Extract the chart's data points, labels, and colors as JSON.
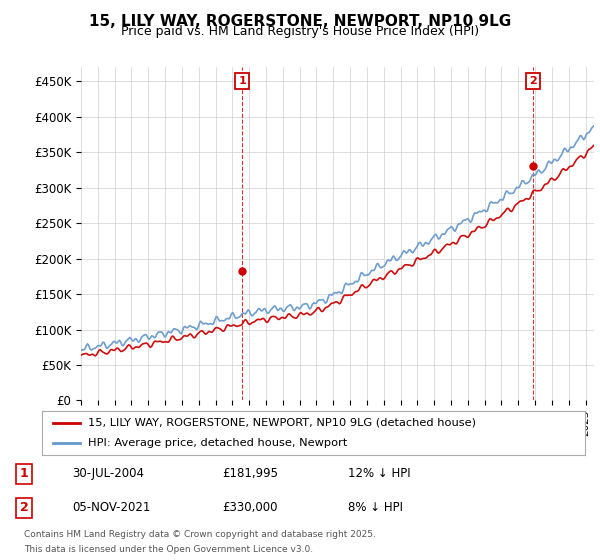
{
  "title": "15, LILY WAY, ROGERSTONE, NEWPORT, NP10 9LG",
  "subtitle": "Price paid vs. HM Land Registry's House Price Index (HPI)",
  "ylabel_ticks": [
    "£0",
    "£50K",
    "£100K",
    "£150K",
    "£200K",
    "£250K",
    "£300K",
    "£350K",
    "£400K",
    "£450K"
  ],
  "ytick_vals": [
    0,
    50000,
    100000,
    150000,
    200000,
    250000,
    300000,
    350000,
    400000,
    450000
  ],
  "ylim": [
    0,
    470000
  ],
  "xlim_start": 1995.0,
  "xlim_end": 2025.5,
  "sale1_x": 2004.58,
  "sale1_y": 181995,
  "sale1_label": "1",
  "sale2_x": 2021.85,
  "sale2_y": 330000,
  "sale2_label": "2",
  "sale_color": "#cc0000",
  "hpi_color": "#6699cc",
  "annotation_box_color": "#cc0000",
  "legend_label_red": "15, LILY WAY, ROGERSTONE, NEWPORT, NP10 9LG (detached house)",
  "legend_label_blue": "HPI: Average price, detached house, Newport",
  "note1_label": "1",
  "note1_date": "30-JUL-2004",
  "note1_price": "£181,995",
  "note1_hpi": "12% ↓ HPI",
  "note2_label": "2",
  "note2_date": "05-NOV-2021",
  "note2_price": "£330,000",
  "note2_hpi": "8% ↓ HPI",
  "footer_line1": "Contains HM Land Registry data © Crown copyright and database right 2025.",
  "footer_line2": "This data is licensed under the Open Government Licence v3.0.",
  "background_color": "#ffffff",
  "grid_color": "#cccccc"
}
